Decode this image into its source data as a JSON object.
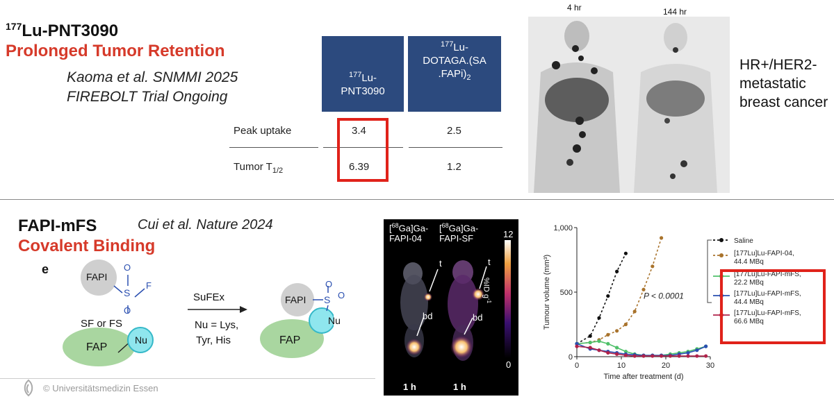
{
  "top": {
    "title_iso": "177",
    "title_main": "Lu-PNT3090",
    "subtitle": "Prolonged Tumor Retention",
    "citation_line1": "Kaoma et al. SNMMI 2025",
    "citation_line2": "FIREBOLT Trial Ongoing",
    "table": {
      "col1_iso": "177",
      "col1_line1": "Lu-",
      "col1_line2": "PNT3090",
      "col2_iso": "177",
      "col2_line1": "Lu-",
      "col2_line2": "DOTAGA.(SA",
      "col2_line3": ".FAPi)",
      "col2_sub": "2",
      "rows": [
        {
          "label": "Peak uptake",
          "v1": "3.4",
          "v2": "2.5"
        },
        {
          "label": "Tumor T",
          "label_sub": "1/2",
          "v1": "6.39",
          "v2": "1.2"
        }
      ]
    },
    "scan_label_1": "4 hr",
    "scan_label_2": "144 hr",
    "disease_line1": "HR+/HER2-",
    "disease_line2": "metastatic",
    "disease_line3": "breast cancer"
  },
  "bottom": {
    "title": "FAPI-mFS",
    "subtitle": "Covalent Binding",
    "citation": "Cui et al. Nature 2024",
    "panel_letter": "e",
    "scheme": {
      "fapi": "FAPI",
      "s": "S",
      "o1": "O",
      "o2": "O",
      "f": "F",
      "sf_or_fs": "SF or FS",
      "fap": "FAP",
      "nu": "Nu",
      "reaction": "SuFEx",
      "nu_def_1": "Nu = Lys,",
      "nu_def_2": "Tyr, His"
    },
    "pet": {
      "label1_iso": "68",
      "label1_a": "Ga]Ga-",
      "label1_b": "FAPI-04",
      "label2_iso": "68",
      "label2_a": "Ga]Ga-",
      "label2_b": "FAPI-SF",
      "scale_max": "12",
      "scale_min": "0",
      "scale_unit": "%ID g",
      "scale_unit_sup": "-1",
      "tumor": "t",
      "bladder": "bd",
      "time": "1 h"
    },
    "footer": "© Universitätsmedizin Essen"
  },
  "chart_data": {
    "type": "line",
    "xlabel": "Time after treatment (d)",
    "ylabel": "Tumour volume (mm³)",
    "xlim": [
      0,
      30
    ],
    "ylim": [
      0,
      1000
    ],
    "xticks": [
      "0",
      "10",
      "20",
      "30"
    ],
    "yticks": [
      "0",
      "500",
      "1,000"
    ],
    "annotation": "P < 0.0001",
    "legend_position": "right",
    "series": [
      {
        "name": "Saline",
        "color": "#111111",
        "x": [
          0,
          3,
          5,
          7,
          9,
          11
        ],
        "y": [
          100,
          160,
          300,
          470,
          660,
          800
        ]
      },
      {
        "name_iso": "177",
        "name_a": "Lu]Lu-FAPI-04,",
        "name_b": "44.4 MBq",
        "color": "#a9732c",
        "x": [
          0,
          3,
          5,
          7,
          9,
          11,
          13,
          15,
          17,
          19
        ],
        "y": [
          100,
          110,
          130,
          170,
          200,
          250,
          350,
          520,
          700,
          920
        ]
      },
      {
        "name_iso": "177",
        "name_a": "Lu]Lu-FAPI-mFS,",
        "name_b": "22.2 MBq",
        "color": "#4fc06a",
        "x": [
          0,
          3,
          5,
          7,
          9,
          11,
          13,
          15,
          17,
          19,
          21,
          23,
          25,
          27,
          29
        ],
        "y": [
          100,
          110,
          120,
          100,
          70,
          40,
          20,
          10,
          10,
          10,
          20,
          30,
          40,
          60,
          80
        ]
      },
      {
        "name_iso": "177",
        "name_a": "Lu]Lu-FAPI-mFS,",
        "name_b": "44.4 MBq",
        "color": "#2a4fb0",
        "x": [
          0,
          3,
          5,
          7,
          9,
          11,
          13,
          15,
          17,
          19,
          21,
          23,
          25,
          27,
          29
        ],
        "y": [
          100,
          60,
          50,
          40,
          30,
          20,
          15,
          10,
          10,
          10,
          10,
          20,
          30,
          50,
          80
        ]
      },
      {
        "name_iso": "177",
        "name_a": "Lu]Lu-FAPI-mFS,",
        "name_b": "66.6 MBq",
        "color": "#b0224a",
        "x": [
          0,
          3,
          5,
          7,
          9,
          11,
          13,
          15,
          17,
          19,
          21,
          23,
          25,
          27,
          29
        ],
        "y": [
          80,
          70,
          50,
          30,
          20,
          10,
          5,
          5,
          5,
          5,
          5,
          5,
          5,
          5,
          5
        ]
      }
    ]
  },
  "colors": {
    "accent_red": "#d63a2a",
    "table_header": "#2c4a7e",
    "box_red": "#e0221a"
  }
}
